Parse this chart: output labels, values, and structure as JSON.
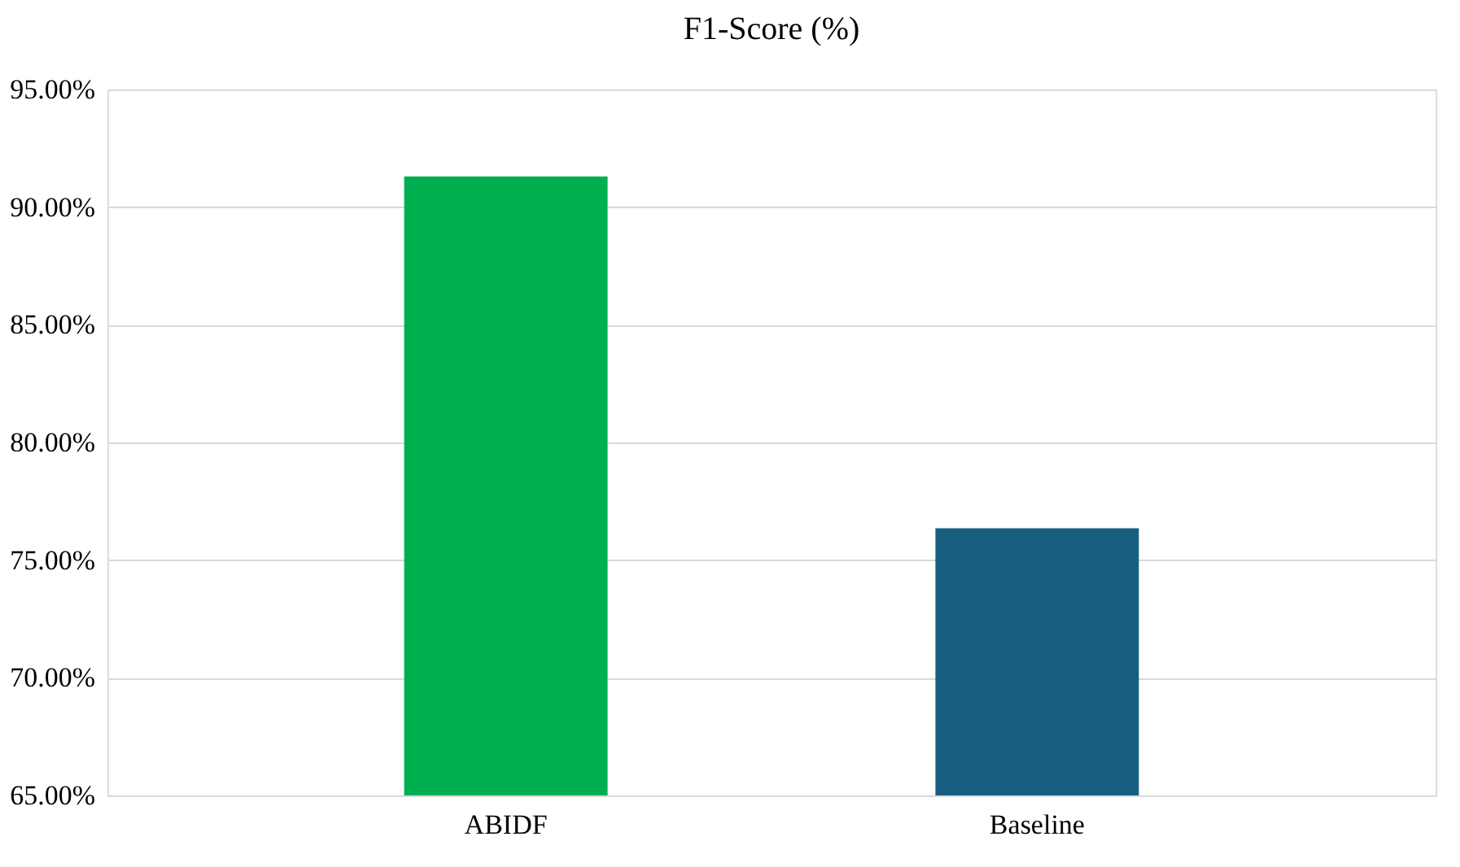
{
  "chart_data": {
    "type": "bar",
    "title": "F1-Score (%)",
    "categories": [
      "ABIDF",
      "Baseline"
    ],
    "values": [
      91.3,
      76.35
    ],
    "colors": [
      "#00b050",
      "#175e80"
    ],
    "ylim": [
      65,
      95
    ],
    "yticks": [
      {
        "value": 65,
        "label": "65.00%"
      },
      {
        "value": 70,
        "label": "70.00%"
      },
      {
        "value": 75,
        "label": "75.00%"
      },
      {
        "value": 80,
        "label": "80.00%"
      },
      {
        "value": 85,
        "label": "85.00%"
      },
      {
        "value": 90,
        "label": "90.00%"
      },
      {
        "value": 95,
        "label": "95.00%"
      }
    ],
    "grid": "y"
  }
}
